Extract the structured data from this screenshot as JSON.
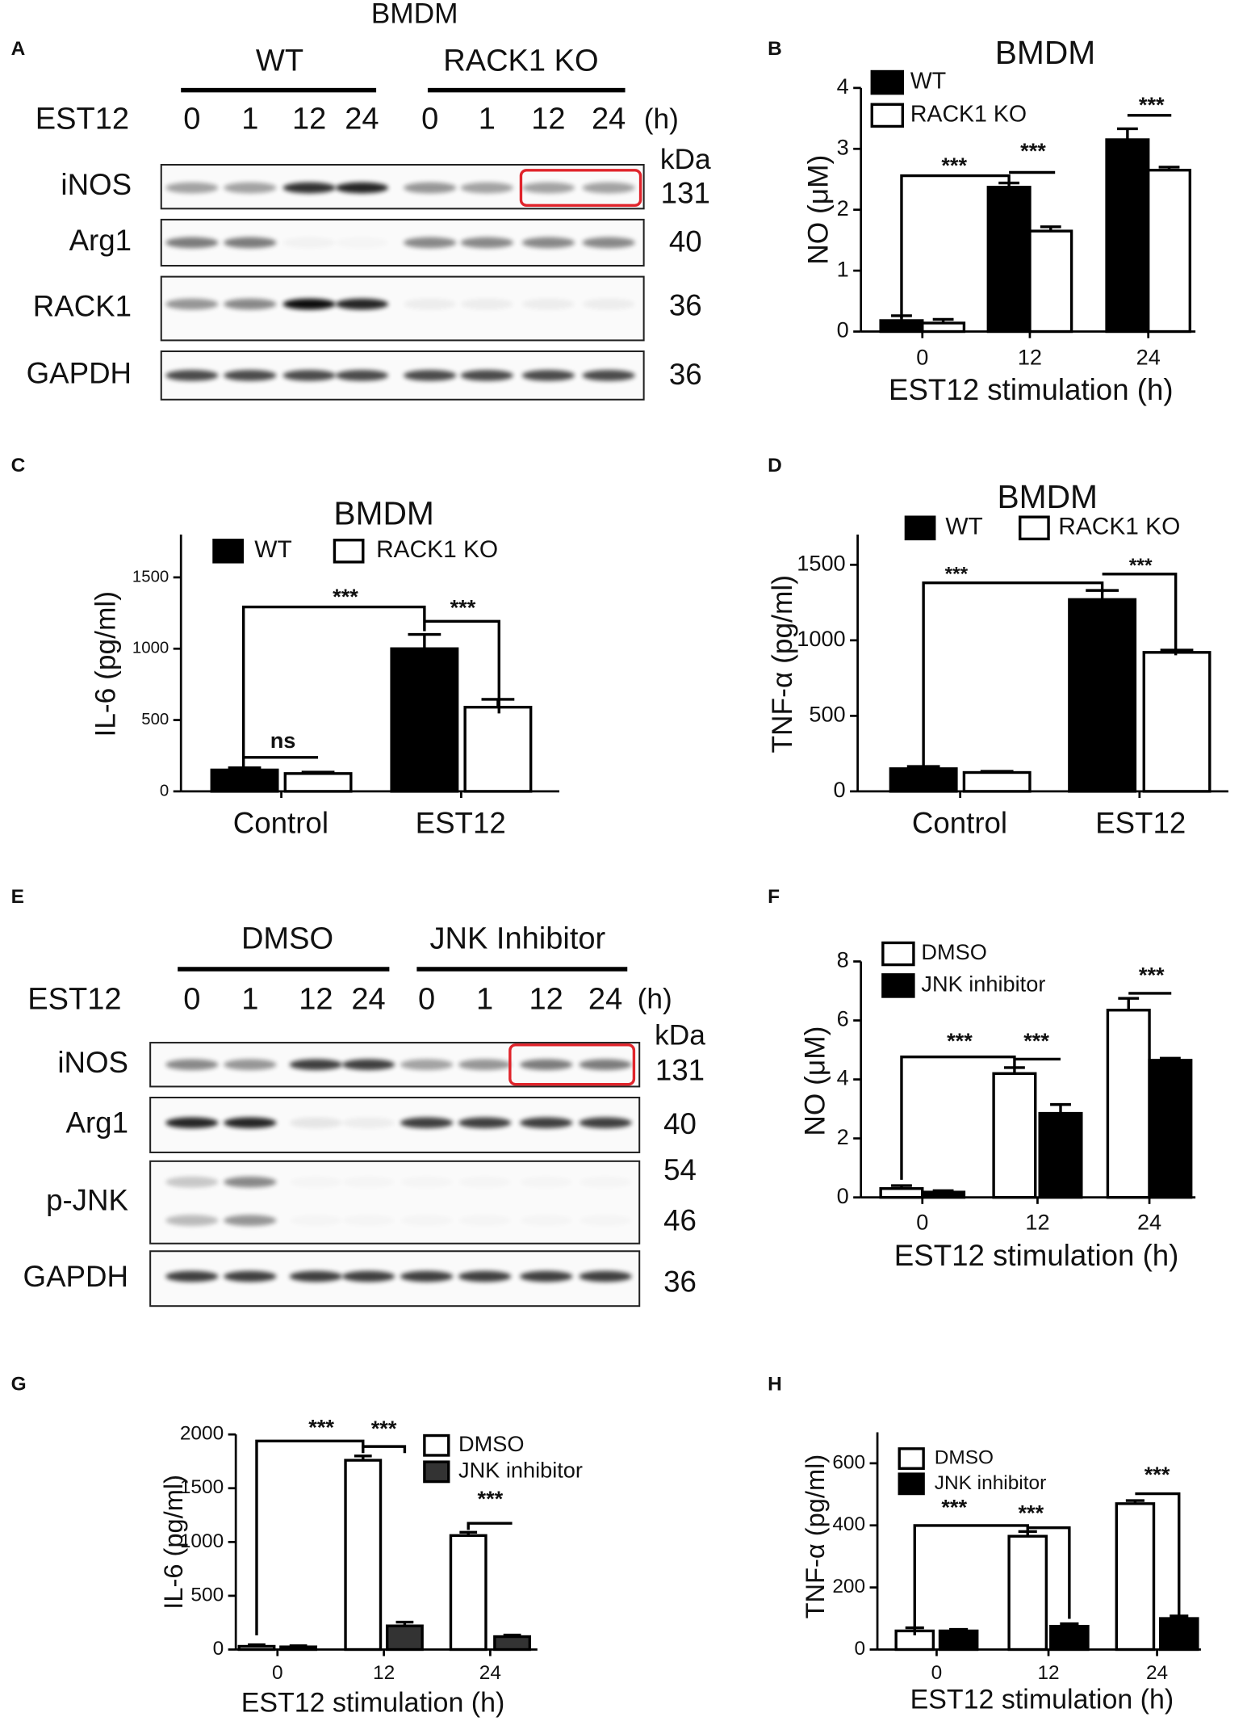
{
  "panel_labels": [
    "A",
    "B",
    "C",
    "D",
    "E",
    "F",
    "G",
    "H"
  ],
  "blots": [
    {
      "title": "BMDM",
      "groups": [
        "WT",
        "RACK1 KO"
      ],
      "treatment": "EST12",
      "lanes": [
        "0",
        "1",
        "12",
        "24",
        "0",
        "1",
        "12",
        "24"
      ],
      "unit": "(h)",
      "mw_unit": "kDa",
      "rows": [
        {
          "protein": "iNOS",
          "mw": [
            "131"
          ]
        },
        {
          "protein": "Arg1",
          "mw": [
            "40"
          ]
        },
        {
          "protein": "RACK1",
          "mw": [
            "36"
          ]
        },
        {
          "protein": "GAPDH",
          "mw": [
            "36"
          ]
        }
      ]
    },
    {
      "groups": [
        "DMSO",
        "JNK Inhibitor"
      ],
      "treatment": "EST12",
      "lanes": [
        "0",
        "1",
        "12",
        "24",
        "0",
        "1",
        "12",
        "24"
      ],
      "unit": "(h)",
      "mw_unit": "kDa",
      "rows": [
        {
          "protein": "iNOS",
          "mw": [
            "131"
          ]
        },
        {
          "protein": "Arg1",
          "mw": [
            "40"
          ]
        },
        {
          "protein": "p-JNK",
          "mw": [
            "54",
            "46"
          ]
        },
        {
          "protein": "GAPDH",
          "mw": [
            "36"
          ]
        }
      ]
    }
  ],
  "chart_data": [
    {
      "type": "bar",
      "title": "BMDM",
      "y_label": "NO (μM)",
      "x_label": "EST12 stimulation (h)",
      "categories": [
        "0",
        "12",
        "24"
      ],
      "ylim": [
        0,
        4
      ],
      "yticks": [
        0,
        1,
        2,
        3,
        4
      ],
      "series": [
        {
          "name": "WT",
          "color": "#000000",
          "values": [
            0.18,
            2.37,
            3.15
          ],
          "errors": [
            0.08,
            0.07,
            0.18
          ]
        },
        {
          "name": "RACK1 KO",
          "color": "#ffffff",
          "values": [
            0.14,
            1.65,
            2.65
          ],
          "errors": [
            0.06,
            0.07,
            0.05
          ]
        }
      ],
      "annotations": [
        "***",
        "***",
        "***"
      ]
    },
    {
      "type": "bar",
      "title": "BMDM",
      "y_label": "IL-6 (pg/ml)",
      "categories": [
        "Control",
        "EST12"
      ],
      "ylim": [
        0,
        1800
      ],
      "yticks": [
        0,
        500,
        1000,
        1500
      ],
      "series": [
        {
          "name": "WT",
          "color": "#000000",
          "values": [
            150,
            1000
          ],
          "errors": [
            15,
            100
          ]
        },
        {
          "name": "RACK1 KO",
          "color": "#ffffff",
          "values": [
            125,
            590
          ],
          "errors": [
            10,
            55
          ]
        }
      ],
      "annotations": [
        "***",
        "***",
        "ns"
      ]
    },
    {
      "type": "bar",
      "title": "BMDM",
      "y_label": "TNF-α (pg/ml)",
      "categories": [
        "Control",
        "EST12"
      ],
      "ylim": [
        0,
        1700
      ],
      "yticks": [
        0,
        500,
        1000,
        1500
      ],
      "series": [
        {
          "name": "WT",
          "color": "#000000",
          "values": [
            150,
            1270
          ],
          "errors": [
            15,
            60
          ]
        },
        {
          "name": "RACK1 KO",
          "color": "#ffffff",
          "values": [
            125,
            920
          ],
          "errors": [
            8,
            15
          ]
        }
      ],
      "annotations": [
        "***",
        "***"
      ]
    },
    {
      "type": "bar",
      "y_label": "NO (μM)",
      "x_label": "EST12 stimulation (h)",
      "categories": [
        "0",
        "12",
        "24"
      ],
      "ylim": [
        0,
        8
      ],
      "yticks": [
        0,
        2,
        4,
        6,
        8
      ],
      "series": [
        {
          "name": "DMSO",
          "color": "#ffffff",
          "values": [
            0.3,
            4.2,
            6.35
          ],
          "errors": [
            0.1,
            0.2,
            0.4
          ]
        },
        {
          "name": "JNK inhibitor",
          "color": "#000000",
          "values": [
            0.18,
            2.85,
            4.65
          ],
          "errors": [
            0.05,
            0.3,
            0.07
          ]
        }
      ],
      "annotations": [
        "***",
        "***",
        "***"
      ]
    },
    {
      "type": "bar",
      "y_label": "IL-6 (pg/ml)",
      "x_label": "EST12 stimulation (h)",
      "categories": [
        "0",
        "12",
        "24"
      ],
      "ylim": [
        0,
        2000
      ],
      "yticks": [
        0,
        500,
        1000,
        1500,
        2000
      ],
      "series": [
        {
          "name": "DMSO",
          "color": "#ffffff",
          "values": [
            30,
            1760,
            1060
          ],
          "errors": [
            15,
            40,
            30
          ]
        },
        {
          "name": "JNK inhibitor",
          "color": "#333333",
          "values": [
            25,
            220,
            120
          ],
          "errors": [
            10,
            35,
            15
          ]
        }
      ],
      "annotations": [
        "***",
        "***",
        "***"
      ]
    },
    {
      "type": "bar",
      "y_label": "TNF-α  (pg/ml)",
      "x_label": "EST12 stimulation (h)",
      "categories": [
        "0",
        "12",
        "24"
      ],
      "ylim": [
        0,
        700
      ],
      "yticks": [
        0,
        200,
        400,
        600
      ],
      "series": [
        {
          "name": "DMSO",
          "color": "#ffffff",
          "values": [
            60,
            365,
            470
          ],
          "errors": [
            10,
            15,
            10
          ]
        },
        {
          "name": "JNK inhibitor",
          "color": "#000000",
          "values": [
            60,
            75,
            100
          ],
          "errors": [
            5,
            8,
            8
          ]
        }
      ],
      "annotations": [
        "***",
        "***",
        "***"
      ]
    }
  ]
}
